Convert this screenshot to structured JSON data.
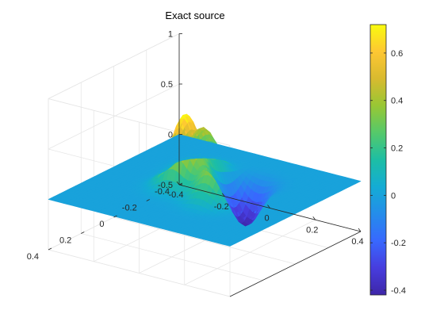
{
  "chart_data": {
    "type": "surface",
    "title": "Exact source",
    "xlabel": "",
    "ylabel": "",
    "zlabel": "",
    "x_range": [
      -0.4,
      0.4
    ],
    "y_range": [
      -0.4,
      0.4
    ],
    "zlim": [
      -0.5,
      1
    ],
    "x_ticks": [
      "-0.4",
      "-0.2",
      "0",
      "0.2",
      "0.4"
    ],
    "y_ticks": [
      "-0.4",
      "-0.2",
      "0",
      "0.2",
      "0.4"
    ],
    "z_ticks": [
      "-0.5",
      "0",
      "0.5",
      "1"
    ],
    "grid": true,
    "colormap": "parula",
    "colorbar": {
      "location": "right",
      "range": [
        -0.42,
        0.72
      ],
      "ticks": [
        "-0.4",
        "-0.2",
        "0",
        "0.2",
        "0.4",
        "0.6"
      ]
    },
    "features": [
      {
        "kind": "peak",
        "x": -0.07,
        "y": 0.02,
        "z": 0.72
      },
      {
        "kind": "peak",
        "x": -0.1,
        "y": -0.13,
        "z": 0.45
      },
      {
        "kind": "peak",
        "x": 0.1,
        "y": 0.08,
        "z": 0.38
      },
      {
        "kind": "trough",
        "x": 0.08,
        "y": -0.14,
        "z": -0.42
      }
    ],
    "colors": {
      "background": "#ffffff",
      "axis": "#262626",
      "grid": "#e6e6e6"
    }
  }
}
